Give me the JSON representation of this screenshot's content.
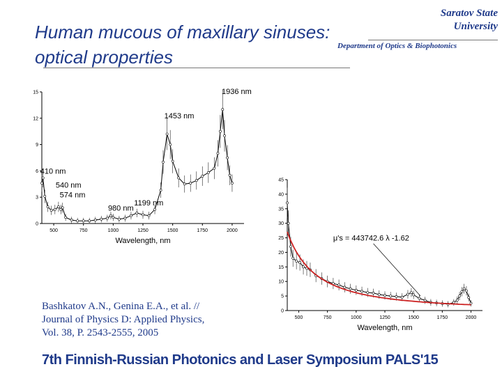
{
  "header": {
    "title_line1": "Human mucous of maxillary sinuses:",
    "title_line2": "optical properties",
    "org_line1": "Saratov State",
    "org_line2": "University",
    "department": "Department of Optics & Biophotonics"
  },
  "reference": {
    "line1": "Bashkatov A.N., Genina E.A., et al. //",
    "line2": "Journal of Physics D: Applied Physics,",
    "line3": "Vol. 38, P. 2543-2555, 2005"
  },
  "footer": {
    "text": "7th Finnish-Russian Photonics and Laser Symposium PALS'15"
  },
  "colors": {
    "text_blue": "#1f3a8a",
    "fit_red": "#cc2222"
  },
  "chart_data": [
    {
      "type": "line",
      "xlabel": "Wavelength, nm",
      "ylabel": "",
      "xlim": [
        400,
        2100
      ],
      "ylim": [
        0,
        15
      ],
      "xticks": [
        500,
        750,
        1000,
        1250,
        1500,
        1750,
        2000
      ],
      "yticks": [
        0,
        3,
        6,
        9,
        12,
        15
      ],
      "annotations": [
        {
          "text": "410 nm",
          "x": 410,
          "y": 5.2
        },
        {
          "text": "540 nm",
          "x": 540,
          "y": 3.6
        },
        {
          "text": "574 nm",
          "x": 574,
          "y": 2.5
        },
        {
          "text": "1199 nm",
          "x": 1199,
          "y": 1.6
        },
        {
          "text": "1453 nm",
          "x": 1453,
          "y": 11.5
        },
        {
          "text": "1936 nm",
          "x": 1936,
          "y": 14.3
        },
        {
          "text": "980 nm",
          "x": 980,
          "y": 1.0
        }
      ],
      "series": [
        {
          "x": [
            400,
            410,
            425,
            450,
            480,
            510,
            540,
            560,
            574,
            600,
            650,
            700,
            750,
            800,
            850,
            900,
            950,
            980,
            1000,
            1050,
            1100,
            1150,
            1199,
            1250,
            1300,
            1350,
            1400,
            1420,
            1453,
            1480,
            1500,
            1550,
            1600,
            1650,
            1700,
            1750,
            1800,
            1850,
            1880,
            1900,
            1920,
            1936,
            1960,
            1980,
            2000
          ],
          "y": [
            4.6,
            5.2,
            3.1,
            1.9,
            1.5,
            1.6,
            1.9,
            1.6,
            1.8,
            0.7,
            0.4,
            0.3,
            0.3,
            0.3,
            0.4,
            0.5,
            0.6,
            0.9,
            0.7,
            0.5,
            0.6,
            0.9,
            1.2,
            1.0,
            0.9,
            1.6,
            3.8,
            7.0,
            10.2,
            9.0,
            7.1,
            5.2,
            4.5,
            4.6,
            4.9,
            5.4,
            5.8,
            6.3,
            8.0,
            10.5,
            13.0,
            10.0,
            7.5,
            5.5,
            4.6
          ]
        }
      ]
    },
    {
      "type": "scatter",
      "xlabel": "Wavelength, nm",
      "ylabel": "",
      "xlim": [
        400,
        2100
      ],
      "ylim": [
        0,
        45
      ],
      "xticks": [
        500,
        750,
        1000,
        1250,
        1500,
        1750,
        2000
      ],
      "yticks": [
        0,
        5,
        10,
        15,
        20,
        25,
        30,
        35,
        40,
        45
      ],
      "fit_label": "μ's = 443742.6 λ -1.62",
      "fit": {
        "a": 443742.6,
        "b": -1.62,
        "x_from": 400,
        "x_to": 2000
      },
      "series": [
        {
          "x": [
            400,
            410,
            430,
            450,
            480,
            510,
            540,
            570,
            600,
            650,
            700,
            750,
            800,
            850,
            900,
            950,
            1000,
            1050,
            1100,
            1150,
            1200,
            1250,
            1300,
            1350,
            1400,
            1450,
            1480,
            1500,
            1550,
            1600,
            1650,
            1700,
            1750,
            1800,
            1850,
            1880,
            1900,
            1920,
            1940,
            1960,
            1980,
            2000
          ],
          "y": [
            37.0,
            30.0,
            22.0,
            18.0,
            17.0,
            16.5,
            15.0,
            14.5,
            14.0,
            12.0,
            11.0,
            10.0,
            9.3,
            8.8,
            8.0,
            7.5,
            7.0,
            6.6,
            6.2,
            6.0,
            5.5,
            5.2,
            5.0,
            4.8,
            4.6,
            5.6,
            6.2,
            5.4,
            4.2,
            3.5,
            2.8,
            2.6,
            2.4,
            2.2,
            2.8,
            3.6,
            5.0,
            6.5,
            7.5,
            6.8,
            4.5,
            2.5
          ]
        }
      ]
    }
  ]
}
